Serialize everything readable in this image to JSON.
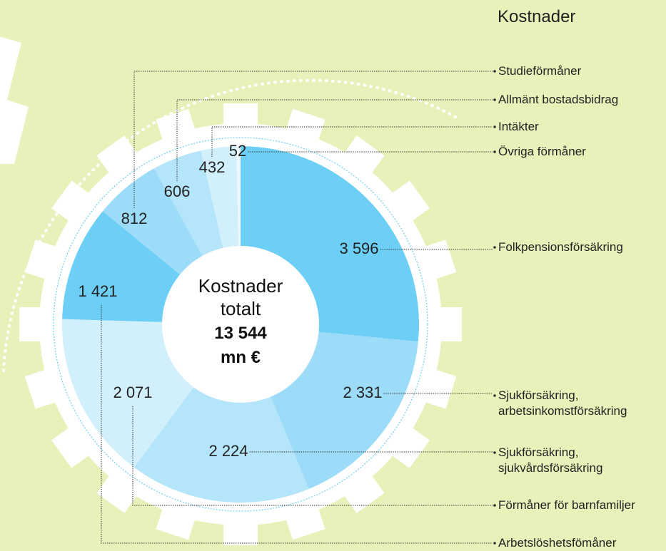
{
  "chart_data": {
    "type": "donut",
    "title": "Kostnader",
    "categories": [
      "Folkpensionsförsäkring",
      "Sjukförsäkring,\narbetsinkomstförsäkring",
      "Sjukförsäkring,\nsjukvårdsförsäkring",
      "Förmåner för barnfamiljer",
      "Arbetslöshetsfömåner",
      "Studieförmåner",
      "Allmänt bostadsbidrag",
      "Intäkter",
      "Övriga förmåner"
    ],
    "values": [
      3596,
      2331,
      2224,
      2071,
      1421,
      812,
      606,
      432,
      52
    ],
    "value_labels": [
      "3 596",
      "2 331",
      "2 224",
      "2 071",
      "1 421",
      "812",
      "606",
      "432",
      "52"
    ],
    "colors": [
      "#6dcff6",
      "#9ddcf8",
      "#b5e5fa",
      "#d2effc",
      "#6dcff6",
      "#9ddcf8",
      "#b5e5fa",
      "#d2effc",
      "#ecf8fe"
    ],
    "center_text": {
      "title": "Kostnader\ntotalt",
      "total": "13 544",
      "unit": "mn €"
    }
  }
}
